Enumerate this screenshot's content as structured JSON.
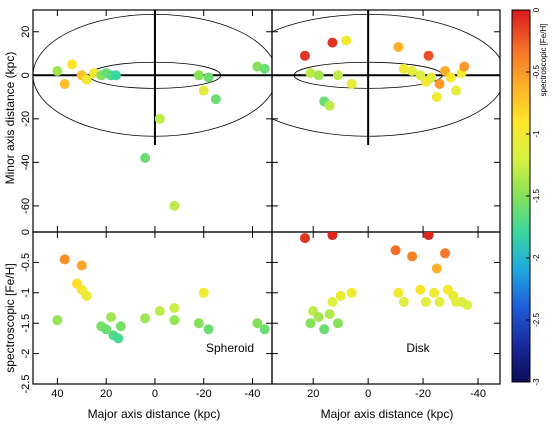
{
  "colorbar": {
    "label": "spectroscopic [Fe/H]",
    "range": [
      -3,
      0
    ],
    "ticks": [
      "0",
      "-0.5",
      "-1",
      "-1.5",
      "-2",
      "-2.5",
      "-3"
    ],
    "tick_values": [
      0,
      -0.5,
      -1,
      -1.5,
      -2,
      -2.5,
      -3
    ],
    "colors": [
      "#d7191c",
      "#f46d2a",
      "#fdae27",
      "#fee52a",
      "#d9f043",
      "#86e15a",
      "#39d6a1",
      "#1fa7e0",
      "#1f5bd9",
      "#1a2a9c",
      "#0b0b57"
    ]
  },
  "axes": {
    "top_ylabel": "Minor axis distance (kpc)",
    "bottom_ylabel": "spectroscopic [Fe/H]",
    "xlabel_left": "Major axis distance (kpc)",
    "xlabel_right": "Major axis distance (kpc)",
    "x_ticks": [
      "40",
      "20",
      "0",
      "-20",
      "-40"
    ],
    "x_tick_values": [
      40,
      20,
      0,
      -20,
      -40
    ],
    "x_ticks_right": [
      "20",
      "0",
      "-20",
      "-40"
    ],
    "x_tick_values_right": [
      20,
      0,
      -20,
      -40
    ],
    "top_y_ticks": [
      "20",
      "0",
      "-20",
      "-40",
      "-60"
    ],
    "top_y_tick_values": [
      20,
      0,
      -20,
      -40,
      -60
    ],
    "bottom_y_ticks": [
      "0",
      "-0.5",
      "-1",
      "-1.5",
      "-2",
      "-2.5"
    ],
    "bottom_y_tick_values": [
      0,
      -0.5,
      -1,
      -1.5,
      -2,
      -2.5
    ]
  },
  "panels": {
    "spheroid_label": "Spheroid",
    "disk_label": "Disk"
  },
  "chart_data": [
    {
      "type": "scatter",
      "panel": "top-left",
      "xlim": [
        50,
        -48
      ],
      "ylim": [
        -72,
        30
      ],
      "points": [
        {
          "x": 40,
          "y": 2,
          "feh": -1.4
        },
        {
          "x": 37,
          "y": -4,
          "feh": -0.7
        },
        {
          "x": 34,
          "y": 5,
          "feh": -0.9
        },
        {
          "x": 30,
          "y": 0,
          "feh": -0.7
        },
        {
          "x": 28,
          "y": -2,
          "feh": -1.0
        },
        {
          "x": 25,
          "y": 1,
          "feh": -1.0
        },
        {
          "x": 22,
          "y": 0,
          "feh": -1.5
        },
        {
          "x": 20,
          "y": 1,
          "feh": -1.6
        },
        {
          "x": 18,
          "y": 0,
          "feh": -1.7
        },
        {
          "x": 16,
          "y": 0,
          "feh": -1.8
        },
        {
          "x": 4,
          "y": -38,
          "feh": -1.6
        },
        {
          "x": -2,
          "y": -20,
          "feh": -1.3
        },
        {
          "x": -8,
          "y": -60,
          "feh": -1.3
        },
        {
          "x": -18,
          "y": 0,
          "feh": -1.5
        },
        {
          "x": -20,
          "y": -7,
          "feh": -1.1
        },
        {
          "x": -22,
          "y": -1,
          "feh": -1.6
        },
        {
          "x": -25,
          "y": -11,
          "feh": -1.6
        },
        {
          "x": -42,
          "y": 4,
          "feh": -1.5
        },
        {
          "x": -45,
          "y": 3,
          "feh": -1.6
        }
      ]
    },
    {
      "type": "scatter",
      "panel": "top-right",
      "xlim": [
        35,
        -48
      ],
      "ylim": [
        -72,
        30
      ],
      "points": [
        {
          "x": 23,
          "y": 9,
          "feh": -0.1
        },
        {
          "x": 21,
          "y": 1,
          "feh": -1.3
        },
        {
          "x": 18,
          "y": 0,
          "feh": -1.4
        },
        {
          "x": 16,
          "y": -12,
          "feh": -1.6
        },
        {
          "x": 14,
          "y": -14,
          "feh": -1.3
        },
        {
          "x": 13,
          "y": 15,
          "feh": -0.1
        },
        {
          "x": 11,
          "y": 0,
          "feh": -1.3
        },
        {
          "x": 8,
          "y": 16,
          "feh": -1.0
        },
        {
          "x": 6,
          "y": -4,
          "feh": -1.1
        },
        {
          "x": -11,
          "y": 13,
          "feh": -0.6
        },
        {
          "x": -13,
          "y": 3,
          "feh": -1.0
        },
        {
          "x": -16,
          "y": 2,
          "feh": -1.1
        },
        {
          "x": -19,
          "y": 0,
          "feh": -1.2
        },
        {
          "x": -21,
          "y": -3,
          "feh": -1.0
        },
        {
          "x": -22,
          "y": 9,
          "feh": -0.2
        },
        {
          "x": -23,
          "y": -1,
          "feh": -1.1
        },
        {
          "x": -25,
          "y": -10,
          "feh": -1.0
        },
        {
          "x": -26,
          "y": -4,
          "feh": -0.5
        },
        {
          "x": -28,
          "y": 2,
          "feh": -0.6
        },
        {
          "x": -30,
          "y": -1,
          "feh": -0.9
        },
        {
          "x": -32,
          "y": -7,
          "feh": -1.1
        },
        {
          "x": -34,
          "y": 1,
          "feh": -1.0
        },
        {
          "x": -35,
          "y": 4,
          "feh": -0.5
        }
      ]
    },
    {
      "type": "scatter",
      "panel": "bottom-left",
      "xlim": [
        50,
        -48
      ],
      "ylim": [
        -2.5,
        0
      ],
      "xlabel": "Major axis distance (kpc)",
      "points": [
        {
          "x": 37,
          "y": -0.45,
          "feh": -0.45
        },
        {
          "x": 30,
          "y": -0.55,
          "feh": -0.55
        },
        {
          "x": 32,
          "y": -0.85,
          "feh": -0.85
        },
        {
          "x": 30,
          "y": -0.95,
          "feh": -0.95
        },
        {
          "x": 28,
          "y": -1.05,
          "feh": -1.05
        },
        {
          "x": 40,
          "y": -1.45,
          "feh": -1.45
        },
        {
          "x": 18,
          "y": -1.4,
          "feh": -1.4
        },
        {
          "x": 22,
          "y": -1.55,
          "feh": -1.55
        },
        {
          "x": 20,
          "y": -1.6,
          "feh": -1.6
        },
        {
          "x": 14,
          "y": -1.55,
          "feh": -1.55
        },
        {
          "x": 17,
          "y": -1.7,
          "feh": -1.7
        },
        {
          "x": 15,
          "y": -1.75,
          "feh": -1.75
        },
        {
          "x": 4,
          "y": -1.42,
          "feh": -1.42
        },
        {
          "x": -2,
          "y": -1.3,
          "feh": -1.3
        },
        {
          "x": -8,
          "y": -1.25,
          "feh": -1.25
        },
        {
          "x": -8,
          "y": -1.45,
          "feh": -1.45
        },
        {
          "x": -20,
          "y": -1.0,
          "feh": -1.0
        },
        {
          "x": -18,
          "y": -1.5,
          "feh": -1.5
        },
        {
          "x": -22,
          "y": -1.6,
          "feh": -1.6
        },
        {
          "x": -42,
          "y": -1.5,
          "feh": -1.5
        },
        {
          "x": -45,
          "y": -1.6,
          "feh": -1.6
        }
      ]
    },
    {
      "type": "scatter",
      "panel": "bottom-right",
      "xlim": [
        35,
        -48
      ],
      "ylim": [
        -2.5,
        0
      ],
      "xlabel": "Major axis distance (kpc)",
      "points": [
        {
          "x": 23,
          "y": -0.1,
          "feh": -0.1
        },
        {
          "x": 13,
          "y": -0.05,
          "feh": -0.05
        },
        {
          "x": 20,
          "y": -1.3,
          "feh": -1.3
        },
        {
          "x": 18,
          "y": -1.4,
          "feh": -1.4
        },
        {
          "x": 21,
          "y": -1.5,
          "feh": -1.5
        },
        {
          "x": 16,
          "y": -1.6,
          "feh": -1.6
        },
        {
          "x": 14,
          "y": -1.35,
          "feh": -1.35
        },
        {
          "x": 13,
          "y": -1.15,
          "feh": -1.15
        },
        {
          "x": 10,
          "y": -1.05,
          "feh": -1.05
        },
        {
          "x": 6,
          "y": -1.0,
          "feh": -1.0
        },
        {
          "x": 11,
          "y": -1.5,
          "feh": -1.5
        },
        {
          "x": -22,
          "y": -0.05,
          "feh": -0.05
        },
        {
          "x": -10,
          "y": -0.3,
          "feh": -0.3
        },
        {
          "x": -16,
          "y": -0.4,
          "feh": -0.4
        },
        {
          "x": -28,
          "y": -0.35,
          "feh": -0.35
        },
        {
          "x": -25,
          "y": -0.6,
          "feh": -0.6
        },
        {
          "x": -11,
          "y": -1.0,
          "feh": -1.0
        },
        {
          "x": -13,
          "y": -1.15,
          "feh": -1.15
        },
        {
          "x": -19,
          "y": -0.95,
          "feh": -0.95
        },
        {
          "x": -21,
          "y": -1.15,
          "feh": -1.15
        },
        {
          "x": -24,
          "y": -1.0,
          "feh": -1.0
        },
        {
          "x": -26,
          "y": -1.15,
          "feh": -1.15
        },
        {
          "x": -29,
          "y": -0.95,
          "feh": -0.95
        },
        {
          "x": -31,
          "y": -1.05,
          "feh": -1.05
        },
        {
          "x": -34,
          "y": -1.15,
          "feh": -1.15
        },
        {
          "x": -36,
          "y": -1.2,
          "feh": -1.2
        },
        {
          "x": -32,
          "y": -1.15,
          "feh": -1.15
        }
      ]
    }
  ]
}
